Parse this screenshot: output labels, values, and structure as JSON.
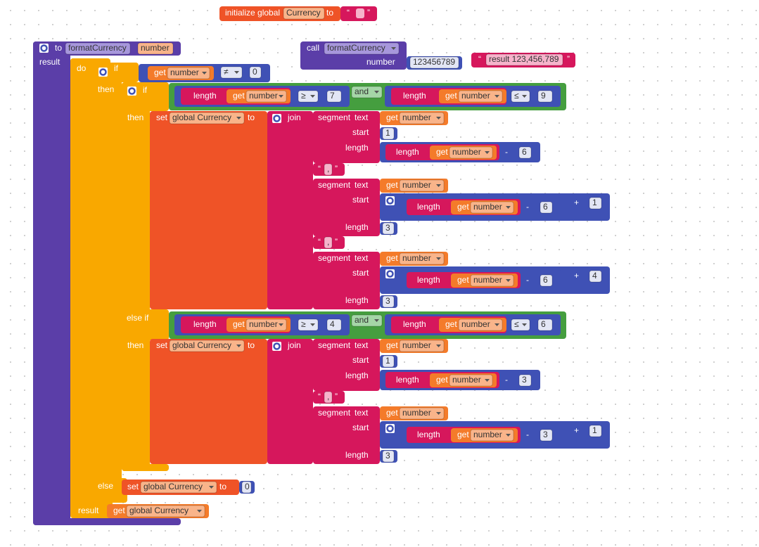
{
  "quotes": {
    "open": "“",
    "close": "”"
  },
  "init_block": {
    "keyword": "initialize global",
    "name": "Currency",
    "to": "to"
  },
  "call_block": {
    "keyword": "call",
    "procedure": "formatCurrency",
    "param": "number",
    "arg": 123456789
  },
  "text_block": {
    "value": "result 123,456,789"
  },
  "procedure": {
    "to": "to",
    "name": "formatCurrency",
    "param": "number",
    "result": "result",
    "do": "do",
    "final_label": "result"
  },
  "get_block": {
    "get": "get",
    "var": "number",
    "global_var": "global Currency"
  },
  "if_block": {
    "if": "if",
    "then": "then",
    "else": "else",
    "else_if": "else if"
  },
  "operators": {
    "neq": "≠",
    "gte": "≥",
    "lte": "≤",
    "and": "and",
    "minus": "-",
    "plus": "+"
  },
  "text_ops": {
    "length": "length",
    "join": "join",
    "segment": "segment",
    "text": "text",
    "start": "start",
    "comma": ","
  },
  "set_block": {
    "set": "set",
    "to": "to"
  },
  "numbers": {
    "zero_check": 0,
    "cond1_min": 7,
    "cond1_max": 9,
    "cond2_min": 4,
    "cond2_max": 6,
    "start": 1,
    "offset1": 6,
    "offset2": 3,
    "add1": 1,
    "add2": 4,
    "group": 3,
    "else_value": 0
  }
}
